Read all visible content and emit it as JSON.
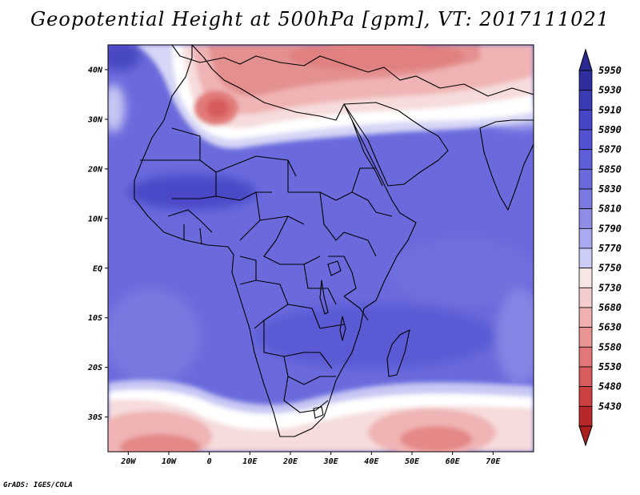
{
  "title": "Geopotential Height at 500hPa [gpm], VT: 2017111021",
  "credit": "GrADS: IGES/COLA",
  "map": {
    "lon_range": [
      -25,
      80
    ],
    "lat_range": [
      -37,
      45
    ],
    "lat_ticks": [
      {
        "value": 40,
        "label": "40N"
      },
      {
        "value": 30,
        "label": "30N"
      },
      {
        "value": 20,
        "label": "20N"
      },
      {
        "value": 10,
        "label": "10N"
      },
      {
        "value": 0,
        "label": "EQ"
      },
      {
        "value": -10,
        "label": "10S"
      },
      {
        "value": -20,
        "label": "20S"
      },
      {
        "value": -30,
        "label": "30S"
      }
    ],
    "lon_ticks": [
      {
        "value": -20,
        "label": "20W"
      },
      {
        "value": -10,
        "label": "10W"
      },
      {
        "value": 0,
        "label": "0"
      },
      {
        "value": 10,
        "label": "10E"
      },
      {
        "value": 20,
        "label": "20E"
      },
      {
        "value": 30,
        "label": "30E"
      },
      {
        "value": 40,
        "label": "40E"
      },
      {
        "value": 50,
        "label": "50E"
      },
      {
        "value": 60,
        "label": "60E"
      },
      {
        "value": 70,
        "label": "70E"
      }
    ]
  },
  "colorbar": {
    "labels": [
      "5950",
      "5930",
      "5910",
      "5890",
      "5870",
      "5850",
      "5830",
      "5810",
      "5790",
      "5770",
      "5750",
      "5730",
      "5680",
      "5630",
      "5580",
      "5530",
      "5480",
      "5430"
    ],
    "colors": [
      "#2e2e9e",
      "#3a3ab4",
      "#4646c8",
      "#5252d2",
      "#5e5ed8",
      "#6a6add",
      "#7a7ae2",
      "#8e8ee8",
      "#aaaaf0",
      "#ccccf6",
      "#f6e6e6",
      "#f4cccc",
      "#f0b0b0",
      "#ea9494",
      "#e27878",
      "#d85c5c",
      "#cc4040",
      "#b82828"
    ],
    "top_arrow_color": "#2a2a90",
    "bottom_arrow_color": "#aa1e1e"
  },
  "field_colors": {
    "deep_blue": "#4848c6",
    "mid_blue": "#6868da",
    "light_blue": "#8c8ce6",
    "pale_blue": "#c8c8f4",
    "white": "#ffffff",
    "pale_red": "#f6d6d6",
    "light_red": "#f0b4b4",
    "mid_red": "#e48888",
    "deep_red": "#d65c5c"
  }
}
